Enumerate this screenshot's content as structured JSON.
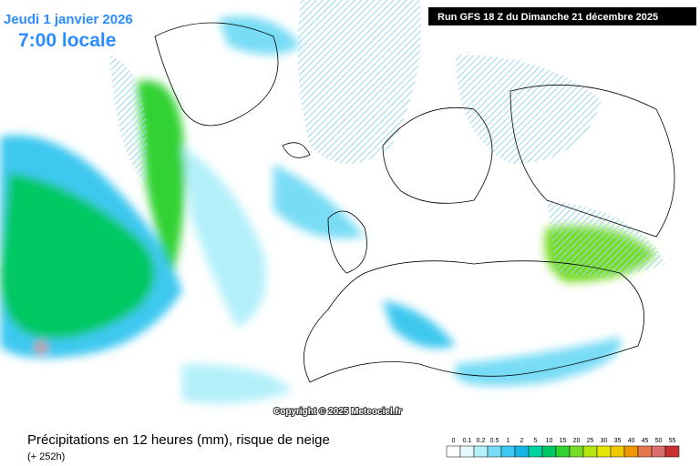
{
  "header": {
    "date": "Jeudi 1 janvier 2026",
    "time": "7:00 locale",
    "run": "Run GFS 18 Z du Dimanche 21 décembre 2025"
  },
  "copyright": "Copyright © 2025 Meteociel.fr",
  "footer": {
    "title": "Précipitations en 12 heures (mm), risque de neige",
    "lead": "(+ 252h)"
  },
  "legend": {
    "levels": [
      0,
      0.1,
      0.2,
      0.5,
      1,
      2,
      5,
      10,
      15,
      20,
      25,
      30,
      35,
      40,
      45,
      50,
      55
    ],
    "colors": [
      "#ffffff",
      "#e6fbff",
      "#b4f0fa",
      "#78dcf5",
      "#3cc8f0",
      "#14b4e6",
      "#00d2a0",
      "#00c864",
      "#32d232",
      "#78dc28",
      "#b4e614",
      "#e6e600",
      "#f0c800",
      "#f09600",
      "#e67850",
      "#dc6e6e",
      "#c83232"
    ]
  }
}
